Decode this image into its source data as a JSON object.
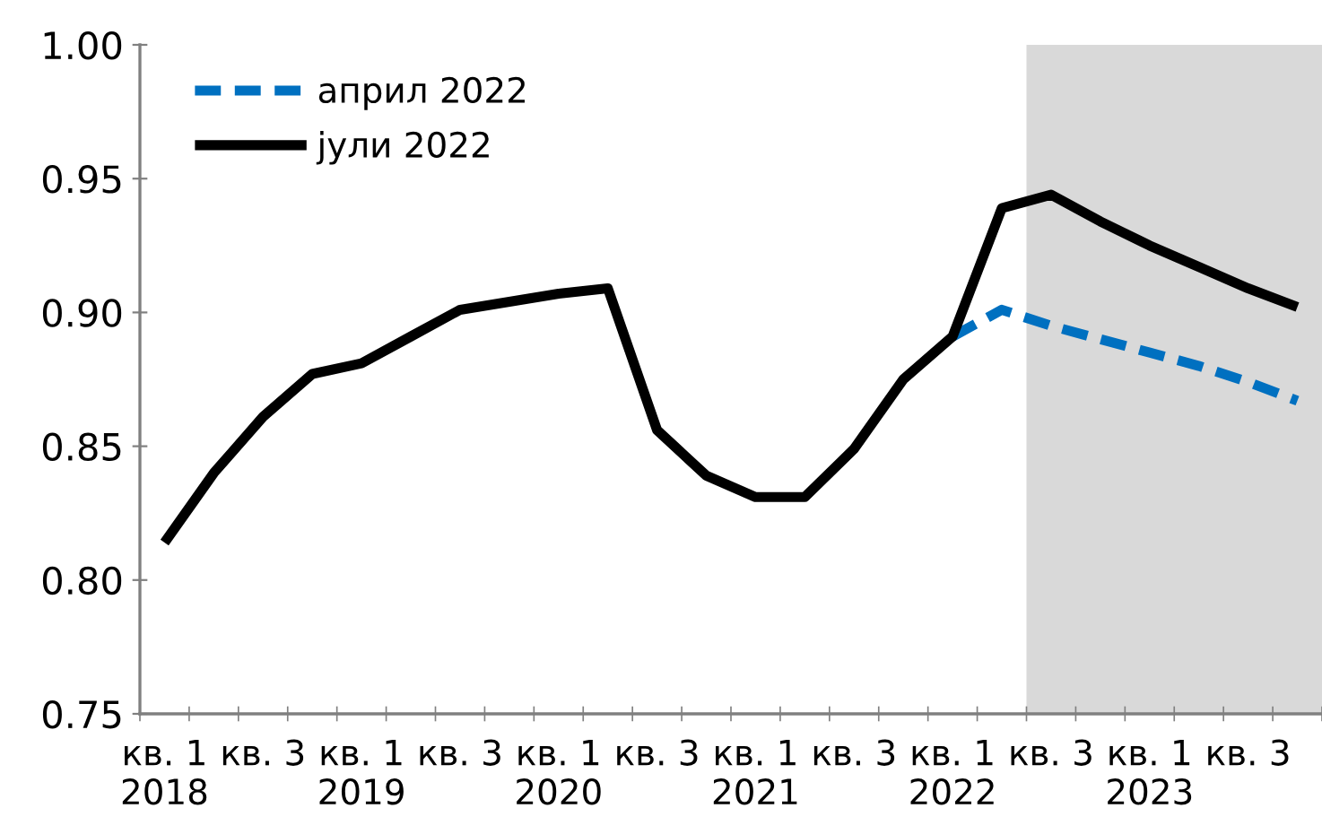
{
  "chart_data": {
    "type": "line",
    "categories": [
      "кв. 1\n2018",
      null,
      "кв. 3",
      null,
      "кв. 1\n2019",
      null,
      "кв. 3",
      null,
      "кв. 1\n2020",
      null,
      "кв. 3",
      null,
      "кв. 1\n2021",
      null,
      "кв. 3",
      null,
      "кв. 1\n2022",
      null,
      "кв. 3",
      null,
      "кв. 1\n2023",
      null,
      "кв. 3",
      null
    ],
    "series": [
      {
        "name": "април 2022",
        "color": "#0070c0",
        "line_style": "dashed",
        "values": [
          null,
          null,
          null,
          null,
          null,
          null,
          null,
          null,
          null,
          null,
          null,
          null,
          null,
          null,
          null,
          null,
          0.891,
          0.901,
          0.895,
          0.89,
          0.885,
          0.88,
          0.874,
          0.867
        ]
      },
      {
        "name": "јули 2022",
        "color": "#000000",
        "line_style": "solid",
        "values": [
          0.814,
          0.84,
          0.861,
          0.877,
          0.881,
          0.891,
          0.901,
          0.904,
          0.907,
          0.909,
          0.856,
          0.839,
          0.831,
          0.831,
          0.849,
          0.875,
          0.891,
          0.939,
          0.944,
          0.934,
          0.925,
          0.917,
          0.909,
          0.902
        ]
      }
    ],
    "ylim": [
      0.75,
      1.0
    ],
    "yticks": [
      {
        "value": 0.75,
        "label": "0.75"
      },
      {
        "value": 0.8,
        "label": "0.80"
      },
      {
        "value": 0.85,
        "label": "0.85"
      },
      {
        "value": 0.9,
        "label": "0.90"
      },
      {
        "value": 0.95,
        "label": "0.95"
      },
      {
        "value": 1.0,
        "label": "1.00"
      }
    ],
    "grid": false,
    "legend": "top left",
    "marker": "none"
  }
}
